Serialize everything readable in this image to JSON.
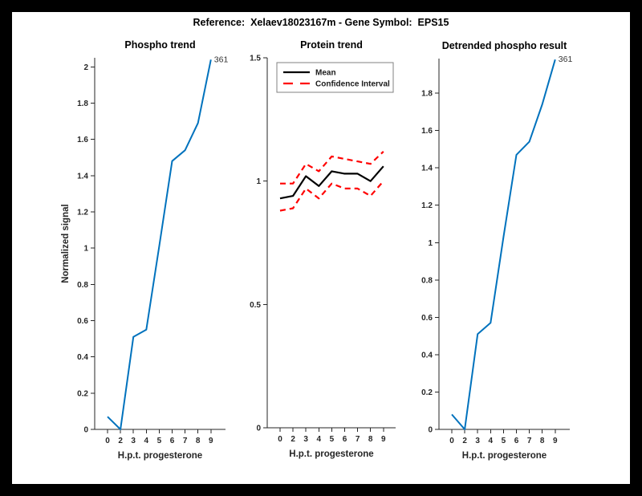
{
  "figure": {
    "title": "Reference:  Xelaev18023167m - Gene Symbol:  EPS15"
  },
  "colors": {
    "line_blue": "#0072BD",
    "ci_red": "#FF0000",
    "mean_black": "#000000",
    "axis_gray": "#262626"
  },
  "chart_data": [
    {
      "id": "phospho-trend",
      "type": "line",
      "title": "Phospho trend",
      "xlabel": "H.p.t. progesterone",
      "ylabel": "Normalized signal",
      "categories": [
        "0",
        "2",
        "3",
        "4",
        "5",
        "6",
        "7",
        "8",
        "9"
      ],
      "yticks": [
        "0",
        "0.2",
        "0.4",
        "0.6",
        "0.8",
        "1",
        "1.2",
        "1.4",
        "1.6",
        "1.8",
        "2"
      ],
      "ylim": [
        0,
        2.05
      ],
      "grid": false,
      "series": [
        {
          "name": "phospho",
          "color": "#0072BD",
          "style": "solid",
          "width": 2,
          "values": [
            0.07,
            0.0,
            0.51,
            0.55,
            1.01,
            1.48,
            1.54,
            1.69,
            2.04
          ]
        }
      ],
      "annotation": {
        "text": "361",
        "anchor": "last-point"
      }
    },
    {
      "id": "protein-trend",
      "type": "line",
      "title": "Protein trend",
      "xlabel": "H.p.t. progesterone",
      "ylabel": "",
      "categories": [
        "0",
        "2",
        "3",
        "4",
        "5",
        "6",
        "7",
        "8",
        "9"
      ],
      "yticks": [
        "0",
        "0.5",
        "1",
        "1.5"
      ],
      "ylim": [
        0,
        1.5
      ],
      "grid": false,
      "series": [
        {
          "name": "Mean",
          "color": "#000000",
          "style": "solid",
          "width": 2.2,
          "values": [
            0.93,
            0.94,
            1.02,
            0.98,
            1.04,
            1.03,
            1.03,
            1.0,
            1.06
          ]
        },
        {
          "name": "Confidence Interval upper",
          "color": "#FF0000",
          "style": "dashed",
          "width": 2.2,
          "values": [
            0.99,
            0.99,
            1.07,
            1.04,
            1.1,
            1.09,
            1.08,
            1.07,
            1.12
          ]
        },
        {
          "name": "Confidence Interval lower",
          "color": "#FF0000",
          "style": "dashed",
          "width": 2.2,
          "values": [
            0.88,
            0.89,
            0.97,
            0.93,
            0.99,
            0.97,
            0.97,
            0.94,
            1.0
          ]
        }
      ],
      "legend": {
        "position": "top-left",
        "entries": [
          {
            "label": "Mean",
            "color": "#000000",
            "style": "solid"
          },
          {
            "label": "Confidence Interval",
            "color": "#FF0000",
            "style": "dashed"
          }
        ]
      }
    },
    {
      "id": "detrended-phospho-result",
      "type": "line",
      "title": "Detrended phospho result",
      "xlabel": "H.p.t. progesterone",
      "ylabel": "",
      "categories": [
        "0",
        "2",
        "3",
        "4",
        "5",
        "6",
        "7",
        "8",
        "9"
      ],
      "yticks": [
        "0",
        "0.2",
        "0.4",
        "0.6",
        "0.8",
        "1",
        "1.2",
        "1.4",
        "1.6",
        "1.8"
      ],
      "ylim": [
        0,
        1.985
      ],
      "grid": false,
      "series": [
        {
          "name": "detrended",
          "color": "#0072BD",
          "style": "solid",
          "width": 2,
          "values": [
            0.08,
            0.0,
            0.51,
            0.57,
            1.03,
            1.47,
            1.54,
            1.74,
            1.98
          ]
        }
      ],
      "annotation": {
        "text": "361",
        "anchor": "last-point"
      }
    }
  ]
}
